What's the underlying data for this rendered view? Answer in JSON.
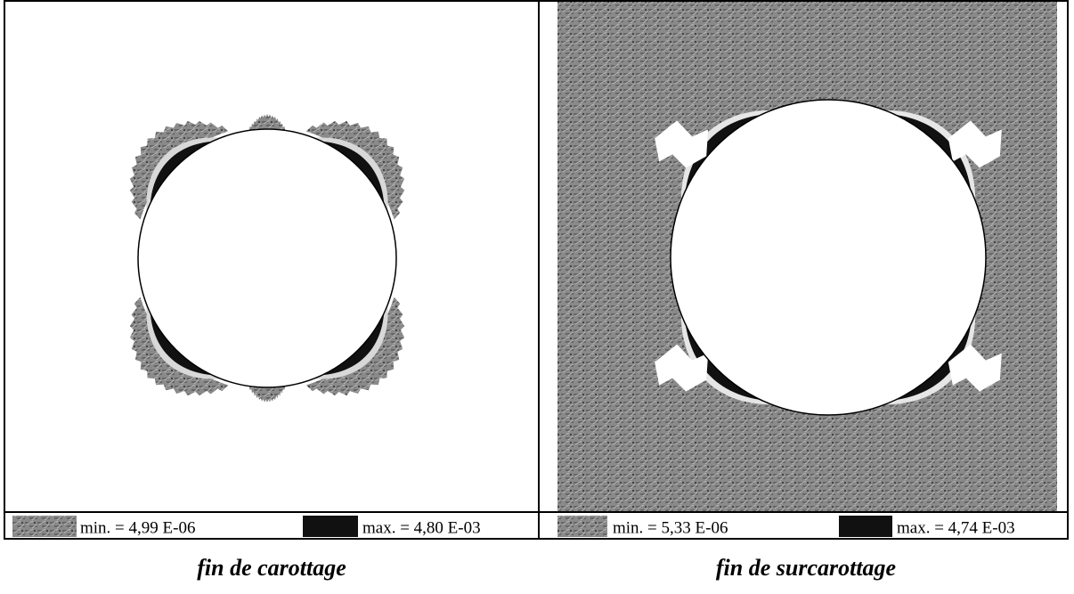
{
  "panels": [
    {
      "legend": {
        "min": "min. = 4,99 E-06",
        "max": "max. = 4,80 E-03"
      },
      "caption": "fin de carottage"
    },
    {
      "legend": {
        "min": "min. = 5,33 E-06",
        "max": "max. = 4,74 E-03"
      },
      "caption": "fin de surcarottage"
    }
  ]
}
